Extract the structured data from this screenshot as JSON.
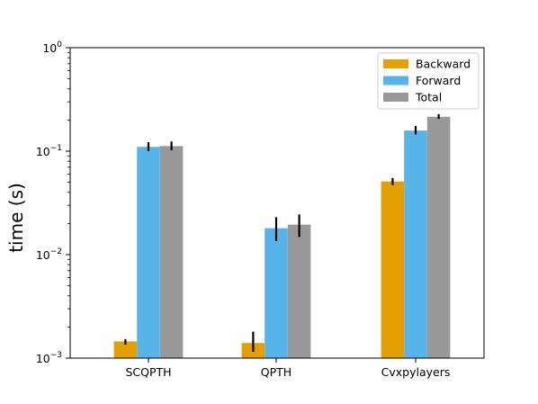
{
  "chart_data": {
    "type": "bar",
    "title": "",
    "xlabel": "",
    "ylabel": "time (s)",
    "yscale": "log",
    "ylim": [
      0.001,
      1
    ],
    "yticks": [
      {
        "value": 0.001,
        "base": "10",
        "exp": "−3"
      },
      {
        "value": 0.01,
        "base": "10",
        "exp": "−2"
      },
      {
        "value": 0.1,
        "base": "10",
        "exp": "−1"
      },
      {
        "value": 1,
        "base": "10",
        "exp": "0"
      }
    ],
    "categories": [
      "SCQPTH",
      "QPTH",
      "Cvxpylayers"
    ],
    "grid": false,
    "legend_position": "top-right",
    "series": [
      {
        "name": "Backward",
        "color": "#E69F00",
        "values": [
          0.00145,
          0.0014,
          0.051
        ],
        "errors_low": [
          0.00135,
          0.00115,
          0.047
        ],
        "errors_high": [
          0.00152,
          0.0018,
          0.055
        ]
      },
      {
        "name": "Forward",
        "color": "#56B4E9",
        "values": [
          0.11,
          0.018,
          0.158
        ],
        "errors_low": [
          0.1,
          0.0135,
          0.145
        ],
        "errors_high": [
          0.122,
          0.023,
          0.175
        ]
      },
      {
        "name": "Total",
        "color": "#999999",
        "values": [
          0.112,
          0.0195,
          0.215
        ],
        "errors_low": [
          0.102,
          0.0148,
          0.205
        ],
        "errors_high": [
          0.124,
          0.0245,
          0.228
        ]
      }
    ]
  }
}
